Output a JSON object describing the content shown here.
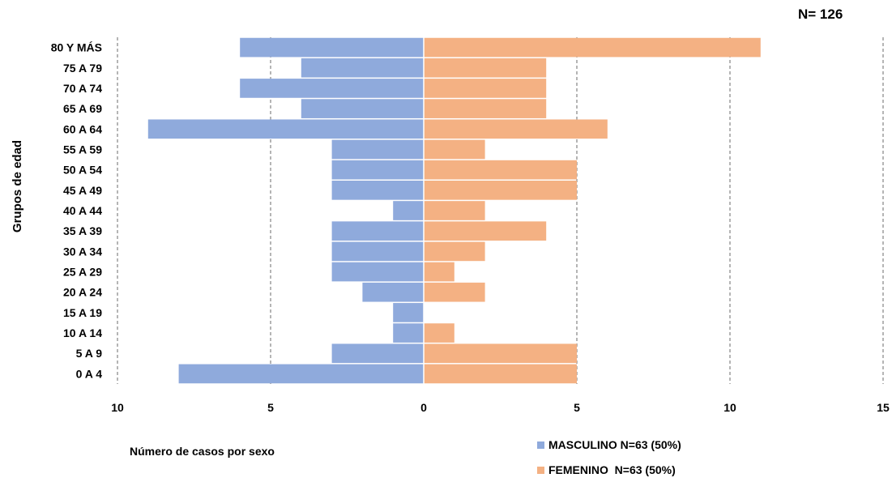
{
  "chart_data": {
    "type": "bar",
    "orientation": "horizontal",
    "layout": "population-pyramid",
    "total_label": "N= 126",
    "ylabel": "Grupos de edad",
    "xlabel": "Número de casos por sexo",
    "categories": [
      "0 A 4",
      "5 A 9",
      "10 A 14",
      "15 A 19",
      "20 A 24",
      "25 A 29",
      "30 A 34",
      "35 A 39",
      "40 A 44",
      "45 A 49",
      "50 A 54",
      "55 A 59",
      "60 A 64",
      "65 A 69",
      "70 A 74",
      "75 A 79",
      "80 Y MÁS"
    ],
    "series": [
      {
        "name": "MASCULINO N=63 (50%)",
        "side": "left",
        "color": "#8faadc",
        "values": [
          8,
          3,
          1,
          1,
          2,
          3,
          3,
          3,
          1,
          3,
          3,
          3,
          9,
          4,
          6,
          4,
          6
        ]
      },
      {
        "name": "FEMENINO  N=63 (50%)",
        "side": "right",
        "color": "#f4b183",
        "values": [
          5,
          5,
          1,
          0,
          2,
          1,
          2,
          4,
          2,
          5,
          5,
          2,
          6,
          4,
          4,
          4,
          11
        ]
      }
    ],
    "xlim": [
      -10,
      15
    ],
    "xticks": [
      -10,
      -5,
      0,
      5,
      10,
      15
    ],
    "xtick_labels": [
      "10",
      "5",
      "0",
      "5",
      "10",
      "15"
    ],
    "grid": "vertical dashed",
    "legend_position": "bottom-right"
  }
}
